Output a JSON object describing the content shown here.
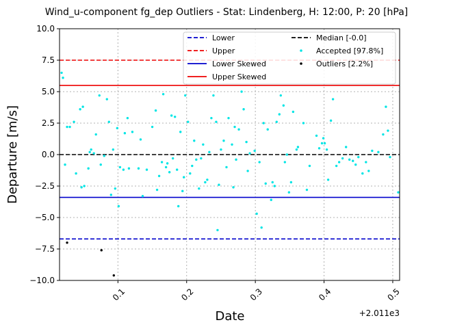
{
  "chart_data": {
    "type": "scatter",
    "title": "Wind_u-component fg_dep Outliers - Stat: Lindenberg, H: 12:00, P: 20 [hPa]",
    "xlabel": "Date",
    "ylabel": "Departure [m/s]",
    "x_offset_text": "+2.011e3",
    "xlim": [
      0.015,
      0.51
    ],
    "ylim": [
      -10,
      10
    ],
    "x_ticks": [
      0.1,
      0.2,
      0.3,
      0.4,
      0.5
    ],
    "x_tick_labels": [
      "0.1",
      "0.2",
      "0.3",
      "0.4",
      "0.5"
    ],
    "y_ticks": [
      -10,
      -7.5,
      -5,
      -2.5,
      0,
      2.5,
      5,
      7.5,
      10
    ],
    "y_tick_labels": [
      "−10.0",
      "−7.5",
      "−5.0",
      "−2.5",
      "0.0",
      "2.5",
      "5.0",
      "7.5",
      "10.0"
    ],
    "grid": true,
    "legend_position": "top-right",
    "reference_lines": [
      {
        "name": "Lower",
        "y": -6.7,
        "style": "dashed",
        "color": "#0000cc"
      },
      {
        "name": "Upper",
        "y": 7.5,
        "style": "dashed",
        "color": "#ee0000"
      },
      {
        "name": "Lower Skewed",
        "y": -3.4,
        "style": "solid",
        "color": "#0000cc"
      },
      {
        "name": "Upper Skewed",
        "y": 5.5,
        "style": "solid",
        "color": "#ee0000"
      },
      {
        "name": "Median [-0.0]",
        "y": 0.0,
        "style": "dashed",
        "color": "#000000"
      }
    ],
    "series": [
      {
        "name": "Accepted [97.8%]",
        "color": "#00e5e5",
        "points": [
          [
            0.018,
            6.5
          ],
          [
            0.02,
            6.1
          ],
          [
            0.023,
            -0.8
          ],
          [
            0.026,
            2.2
          ],
          [
            0.03,
            2.2
          ],
          [
            0.036,
            2.6
          ],
          [
            0.039,
            -1.5
          ],
          [
            0.045,
            3.6
          ],
          [
            0.047,
            -2.6
          ],
          [
            0.049,
            3.8
          ],
          [
            0.051,
            -2.5
          ],
          [
            0.057,
            -1.1
          ],
          [
            0.059,
            0.2
          ],
          [
            0.061,
            0.4
          ],
          [
            0.065,
            0.1
          ],
          [
            0.068,
            1.6
          ],
          [
            0.073,
            4.7
          ],
          [
            0.075,
            -0.8
          ],
          [
            0.08,
            -0.1
          ],
          [
            0.084,
            4.4
          ],
          [
            0.087,
            2.6
          ],
          [
            0.09,
            -3.2
          ],
          [
            0.093,
            0.4
          ],
          [
            0.096,
            -2.7
          ],
          [
            0.099,
            2.1
          ],
          [
            0.101,
            -4.1
          ],
          [
            0.103,
            -1.0
          ],
          [
            0.108,
            -1.2
          ],
          [
            0.11,
            1.7
          ],
          [
            0.114,
            2.9
          ],
          [
            0.116,
            -1.1
          ],
          [
            0.121,
            1.8
          ],
          [
            0.13,
            -1.1
          ],
          [
            0.133,
            1.2
          ],
          [
            0.136,
            -3.3
          ],
          [
            0.142,
            -1.2
          ],
          [
            0.15,
            2.2
          ],
          [
            0.155,
            3.5
          ],
          [
            0.157,
            -2.8
          ],
          [
            0.16,
            -1.7
          ],
          [
            0.164,
            -0.6
          ],
          [
            0.166,
            4.8
          ],
          [
            0.17,
            -1.0
          ],
          [
            0.172,
            -0.7
          ],
          [
            0.175,
            -1.4
          ],
          [
            0.178,
            3.1
          ],
          [
            0.18,
            -0.3
          ],
          [
            0.183,
            3.0
          ],
          [
            0.186,
            -1.2
          ],
          [
            0.188,
            -4.1
          ],
          [
            0.191,
            1.8
          ],
          [
            0.194,
            -2.9
          ],
          [
            0.196,
            -1.8
          ],
          [
            0.198,
            4.7
          ],
          [
            0.202,
            2.6
          ],
          [
            0.205,
            -1.5
          ],
          [
            0.208,
            -0.9
          ],
          [
            0.211,
            1.1
          ],
          [
            0.214,
            -0.4
          ],
          [
            0.218,
            -2.7
          ],
          [
            0.221,
            -0.3
          ],
          [
            0.224,
            0.8
          ],
          [
            0.227,
            -2.2
          ],
          [
            0.23,
            -2.0
          ],
          [
            0.233,
            0.2
          ],
          [
            0.236,
            2.9
          ],
          [
            0.239,
            4.7
          ],
          [
            0.243,
            2.6
          ],
          [
            0.245,
            -6.0
          ],
          [
            0.247,
            -2.4
          ],
          [
            0.25,
            0.4
          ],
          [
            0.254,
            1.1
          ],
          [
            0.258,
            -1.0
          ],
          [
            0.261,
            2.9
          ],
          [
            0.266,
            0.8
          ],
          [
            0.268,
            -2.6
          ],
          [
            0.27,
            2.2
          ],
          [
            0.272,
            -0.4
          ],
          [
            0.276,
            2.0
          ],
          [
            0.28,
            5.0
          ],
          [
            0.283,
            3.6
          ],
          [
            0.287,
            1.0
          ],
          [
            0.289,
            -1.3
          ],
          [
            0.292,
            0.1
          ],
          [
            0.299,
            0.3
          ],
          [
            0.302,
            -4.7
          ],
          [
            0.306,
            -0.6
          ],
          [
            0.309,
            -5.8
          ],
          [
            0.312,
            2.5
          ],
          [
            0.315,
            -2.3
          ],
          [
            0.318,
            2.0
          ],
          [
            0.323,
            -3.6
          ],
          [
            0.325,
            -2.2
          ],
          [
            0.328,
            -2.5
          ],
          [
            0.331,
            2.6
          ],
          [
            0.335,
            3.2
          ],
          [
            0.337,
            4.7
          ],
          [
            0.341,
            3.9
          ],
          [
            0.343,
            -0.6
          ],
          [
            0.346,
            0.0
          ],
          [
            0.349,
            -3.0
          ],
          [
            0.352,
            -2.2
          ],
          [
            0.355,
            3.4
          ],
          [
            0.36,
            0.4
          ],
          [
            0.362,
            0.6
          ],
          [
            0.37,
            2.5
          ],
          [
            0.375,
            -2.8
          ],
          [
            0.379,
            -0.9
          ],
          [
            0.389,
            1.5
          ],
          [
            0.393,
            0.5
          ],
          [
            0.397,
            0.9
          ],
          [
            0.399,
            1.3
          ],
          [
            0.401,
            0.9
          ],
          [
            0.404,
            0.4
          ],
          [
            0.406,
            -2.0
          ],
          [
            0.41,
            2.7
          ],
          [
            0.413,
            4.4
          ],
          [
            0.418,
            -0.9
          ],
          [
            0.422,
            -0.6
          ],
          [
            0.427,
            -0.3
          ],
          [
            0.432,
            0.6
          ],
          [
            0.437,
            -0.4
          ],
          [
            0.442,
            -0.5
          ],
          [
            0.446,
            -0.8
          ],
          [
            0.45,
            -0.2
          ],
          [
            0.456,
            -1.5
          ],
          [
            0.461,
            -0.6
          ],
          [
            0.465,
            -1.3
          ],
          [
            0.47,
            0.3
          ],
          [
            0.479,
            0.2
          ],
          [
            0.486,
            1.6
          ],
          [
            0.49,
            3.8
          ],
          [
            0.493,
            1.9
          ],
          [
            0.496,
            -0.2
          ],
          [
            0.508,
            -3.0
          ]
        ]
      },
      {
        "name": "Outliers [2.2%]",
        "color": "#000000",
        "points": [
          [
            0.026,
            -7.0
          ],
          [
            0.076,
            -7.6
          ],
          [
            0.094,
            -9.6
          ]
        ]
      }
    ]
  }
}
